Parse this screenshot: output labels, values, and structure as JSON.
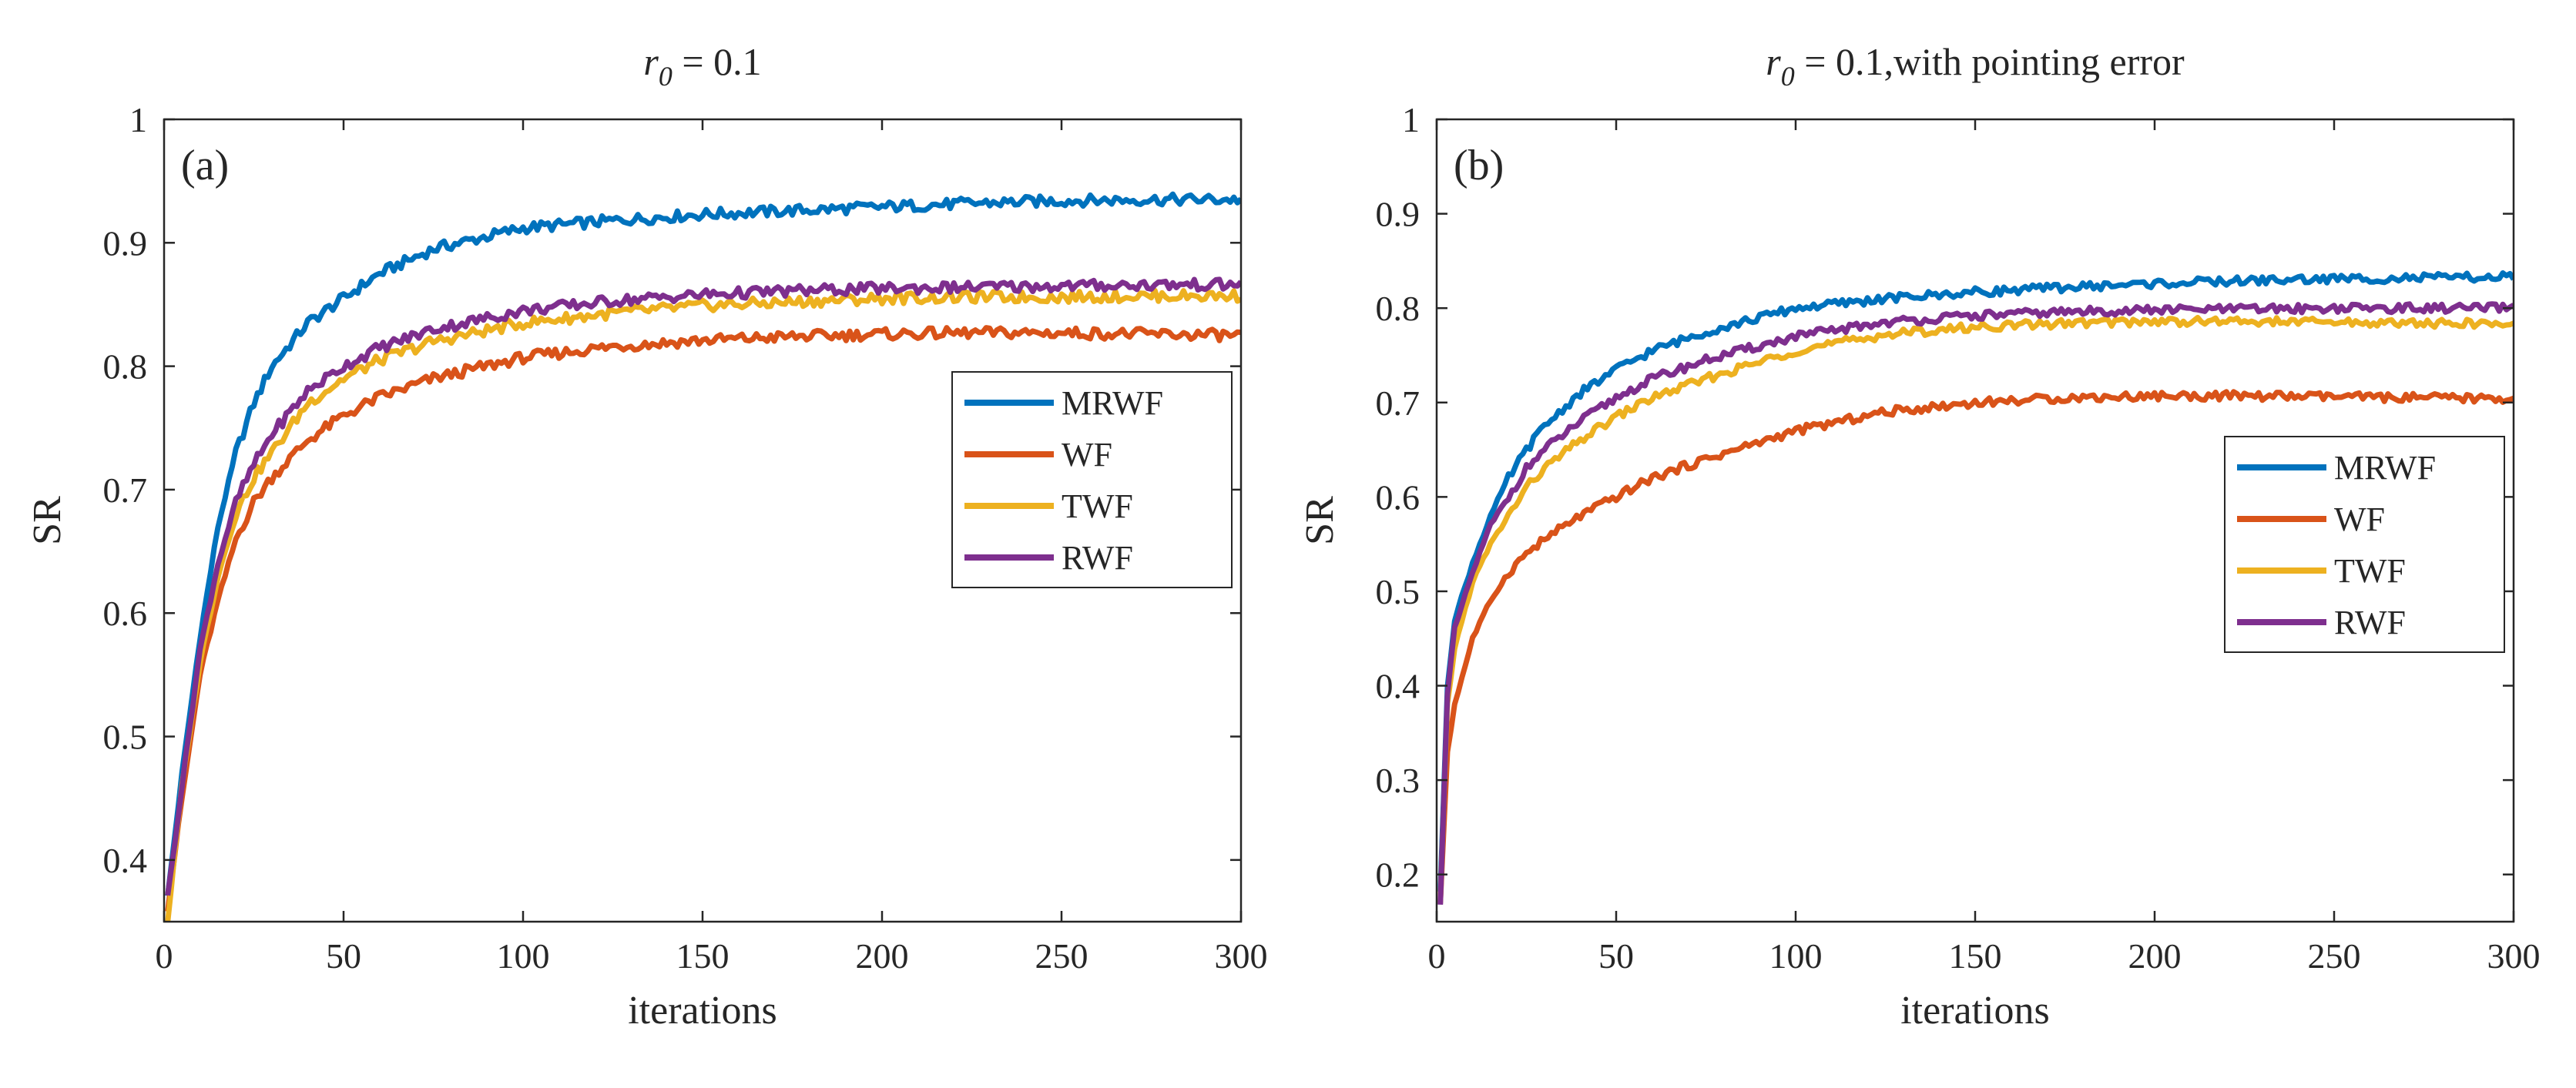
{
  "chart_data": [
    {
      "type": "line",
      "panel_label": "(a)",
      "title_main": "r",
      "title_sub": "0",
      "title_rest": " = 0.1",
      "xlabel": "iterations",
      "ylabel": "SR",
      "xlim": [
        0,
        300
      ],
      "ylim": [
        0.35,
        1.0
      ],
      "xticks": [
        0,
        50,
        100,
        150,
        200,
        250,
        300
      ],
      "yticks": [
        0.4,
        0.5,
        0.6,
        0.7,
        0.8,
        0.9,
        1
      ],
      "xtick_labels": [
        "0",
        "50",
        "100",
        "150",
        "200",
        "250",
        "300"
      ],
      "ytick_labels": [
        "0.4",
        "0.5",
        "0.6",
        "0.7",
        "0.8",
        "0.9",
        "1"
      ],
      "grid": false,
      "legend_position": "middle-right",
      "series": [
        {
          "name": "MRWF",
          "color": "#0072BD",
          "x": [
            1,
            5,
            10,
            15,
            20,
            25,
            30,
            40,
            50,
            60,
            75,
            100,
            125,
            150,
            175,
            200,
            225,
            250,
            275,
            300
          ],
          "y": [
            0.37,
            0.47,
            0.58,
            0.67,
            0.73,
            0.77,
            0.8,
            0.835,
            0.855,
            0.875,
            0.895,
            0.912,
            0.918,
            0.923,
            0.926,
            0.929,
            0.932,
            0.934,
            0.935,
            0.935
          ]
        },
        {
          "name": "WF",
          "color": "#D95319",
          "x": [
            1,
            5,
            10,
            15,
            20,
            25,
            30,
            40,
            50,
            60,
            75,
            100,
            125,
            150,
            175,
            200,
            225,
            250,
            275,
            300
          ],
          "y": [
            0.36,
            0.45,
            0.55,
            0.61,
            0.66,
            0.69,
            0.71,
            0.74,
            0.76,
            0.775,
            0.79,
            0.807,
            0.816,
            0.821,
            0.824,
            0.826,
            0.827,
            0.827,
            0.826,
            0.825
          ]
        },
        {
          "name": "TWF",
          "color": "#EDB120",
          "x": [
            1,
            5,
            10,
            15,
            20,
            25,
            30,
            40,
            50,
            60,
            75,
            100,
            125,
            150,
            175,
            200,
            225,
            250,
            275,
            300
          ],
          "y": [
            0.35,
            0.46,
            0.56,
            0.63,
            0.68,
            0.71,
            0.73,
            0.77,
            0.79,
            0.805,
            0.82,
            0.835,
            0.843,
            0.849,
            0.852,
            0.855,
            0.856,
            0.856,
            0.857,
            0.857
          ]
        },
        {
          "name": "RWF",
          "color": "#7E2F8E",
          "x": [
            1,
            5,
            10,
            15,
            20,
            25,
            30,
            40,
            50,
            60,
            75,
            100,
            125,
            150,
            175,
            200,
            225,
            250,
            275,
            300
          ],
          "y": [
            0.37,
            0.46,
            0.57,
            0.64,
            0.69,
            0.72,
            0.745,
            0.78,
            0.8,
            0.815,
            0.83,
            0.845,
            0.853,
            0.858,
            0.861,
            0.863,
            0.864,
            0.865,
            0.866,
            0.866
          ]
        }
      ]
    },
    {
      "type": "line",
      "panel_label": "(b)",
      "title_main": "r",
      "title_sub": "0",
      "title_rest": " = 0.1,with pointing error",
      "xlabel": "iterations",
      "ylabel": "SR",
      "xlim": [
        0,
        300
      ],
      "ylim": [
        0.15,
        1.0
      ],
      "xticks": [
        0,
        50,
        100,
        150,
        200,
        250,
        300
      ],
      "yticks": [
        0.2,
        0.3,
        0.4,
        0.5,
        0.6,
        0.7,
        0.8,
        0.9,
        1
      ],
      "xtick_labels": [
        "0",
        "50",
        "100",
        "150",
        "200",
        "250",
        "300"
      ],
      "ytick_labels": [
        "0.2",
        "0.3",
        "0.4",
        "0.5",
        "0.6",
        "0.7",
        "0.8",
        "0.9",
        "1"
      ],
      "grid": false,
      "legend_position": "middle-right",
      "series": [
        {
          "name": "MRWF",
          "color": "#0072BD",
          "x": [
            1,
            3,
            5,
            10,
            15,
            20,
            25,
            30,
            40,
            50,
            60,
            75,
            100,
            125,
            150,
            175,
            200,
            225,
            250,
            275,
            300
          ],
          "y": [
            0.18,
            0.4,
            0.47,
            0.53,
            0.58,
            0.62,
            0.65,
            0.675,
            0.71,
            0.735,
            0.755,
            0.775,
            0.8,
            0.81,
            0.817,
            0.822,
            0.826,
            0.829,
            0.831,
            0.832,
            0.833
          ]
        },
        {
          "name": "WF",
          "color": "#D95319",
          "x": [
            1,
            3,
            5,
            10,
            15,
            20,
            25,
            30,
            40,
            50,
            60,
            75,
            100,
            125,
            150,
            175,
            200,
            225,
            250,
            275,
            300
          ],
          "y": [
            0.17,
            0.33,
            0.38,
            0.45,
            0.49,
            0.52,
            0.54,
            0.555,
            0.58,
            0.6,
            0.62,
            0.64,
            0.67,
            0.69,
            0.7,
            0.705,
            0.707,
            0.707,
            0.706,
            0.705,
            0.704
          ]
        },
        {
          "name": "TWF",
          "color": "#EDB120",
          "x": [
            1,
            3,
            5,
            10,
            15,
            20,
            25,
            30,
            40,
            50,
            60,
            75,
            100,
            125,
            150,
            175,
            200,
            225,
            250,
            275,
            300
          ],
          "y": [
            0.17,
            0.38,
            0.44,
            0.51,
            0.55,
            0.58,
            0.61,
            0.63,
            0.66,
            0.685,
            0.705,
            0.725,
            0.755,
            0.772,
            0.78,
            0.784,
            0.786,
            0.786,
            0.785,
            0.784,
            0.783
          ]
        },
        {
          "name": "RWF",
          "color": "#7E2F8E",
          "x": [
            1,
            3,
            5,
            10,
            15,
            20,
            25,
            30,
            40,
            50,
            60,
            75,
            100,
            125,
            150,
            175,
            200,
            225,
            250,
            275,
            300
          ],
          "y": [
            0.17,
            0.39,
            0.46,
            0.52,
            0.57,
            0.6,
            0.63,
            0.65,
            0.68,
            0.705,
            0.725,
            0.745,
            0.77,
            0.785,
            0.792,
            0.796,
            0.798,
            0.799,
            0.8,
            0.8,
            0.8
          ]
        }
      ]
    }
  ]
}
